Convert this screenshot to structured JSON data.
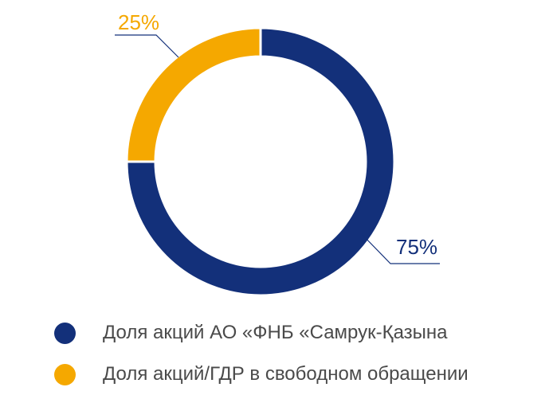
{
  "chart_data": {
    "type": "pie",
    "donut": true,
    "slices": [
      {
        "label": "Доля акций АО «ФНБ «Самрук-Қазына»",
        "legend_text": "Доля акций АО «ФНБ «Самрук-Қазына",
        "value": 75,
        "value_label": "75%",
        "color": "#13307a"
      },
      {
        "label": "Доля акций/ГДР в свободном обращении",
        "legend_text": "Доля акций/ГДР в свободном обращении",
        "value": 25,
        "value_label": "25%",
        "color": "#f5a800"
      }
    ],
    "legend": "bottom"
  },
  "colors": {
    "leader_line": "#13307a",
    "legend_text": "#4a4a4a"
  }
}
